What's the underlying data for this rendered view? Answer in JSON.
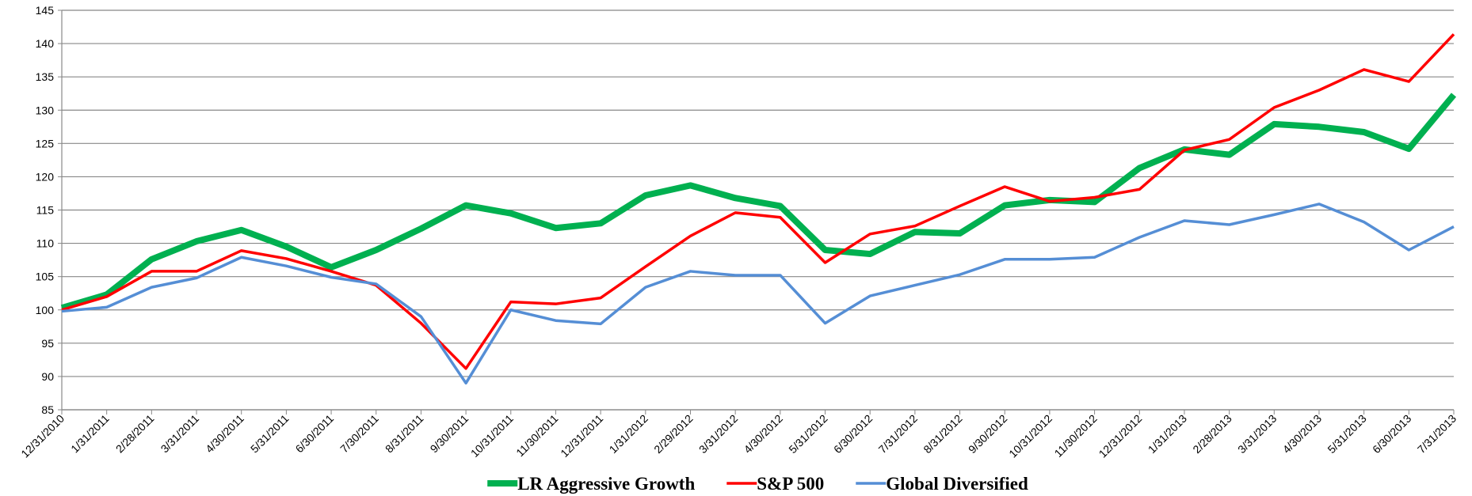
{
  "chart_data": {
    "type": "line",
    "categories": [
      "12/31/2010",
      "1/31/2011",
      "2/28/2011",
      "3/31/2011",
      "4/30/2011",
      "5/31/2011",
      "6/30/2011",
      "7/30/2011",
      "8/31/2011",
      "9/30/2011",
      "10/31/2011",
      "11/30/2011",
      "12/31/2011",
      "1/31/2012",
      "2/29/2012",
      "3/31/2012",
      "4/30/2012",
      "5/31/2012",
      "6/30/2012",
      "7/31/2012",
      "8/31/2012",
      "9/30/2012",
      "10/31/2012",
      "11/30/2012",
      "12/31/2012",
      "1/31/2013",
      "2/28/2013",
      "3/31/2013",
      "4/30/2013",
      "5/31/2013",
      "6/30/2013",
      "7/31/2013"
    ],
    "series": [
      {
        "name": "LR Aggressive Growth",
        "color": "#00b050",
        "values": [
          100.3,
          102.3,
          107.6,
          110.3,
          112.0,
          109.5,
          106.4,
          109.0,
          112.2,
          115.7,
          114.5,
          112.3,
          113.0,
          117.2,
          118.7,
          116.8,
          115.6,
          109.0,
          108.4,
          111.7,
          111.5,
          115.7,
          116.5,
          116.2,
          121.3,
          124.1,
          123.3,
          127.9,
          127.5,
          126.7,
          124.2,
          132.3
        ]
      },
      {
        "name": "S&P 500",
        "color": "#ff0000",
        "values": [
          100.0,
          102.0,
          105.8,
          105.8,
          108.9,
          107.7,
          105.8,
          103.7,
          98.0,
          91.2,
          101.2,
          100.9,
          101.8,
          106.5,
          111.1,
          114.6,
          113.9,
          107.1,
          111.4,
          112.6,
          115.6,
          118.5,
          116.3,
          116.9,
          118.1,
          124.0,
          125.6,
          130.4,
          133.0,
          136.1,
          134.3,
          141.4
        ]
      },
      {
        "name": "Global Diversified",
        "color": "#558ed5",
        "values": [
          99.8,
          100.4,
          103.4,
          104.8,
          107.9,
          106.6,
          104.9,
          103.9,
          99.0,
          89.0,
          100.0,
          98.4,
          97.9,
          103.4,
          105.8,
          105.2,
          105.2,
          98.0,
          102.1,
          103.7,
          105.3,
          107.6,
          107.6,
          107.9,
          110.9,
          113.4,
          112.8,
          114.3,
          115.9,
          113.2,
          109.0,
          112.5
        ]
      }
    ],
    "ylim": [
      85,
      145
    ],
    "yticks": [
      85,
      90,
      95,
      100,
      105,
      110,
      115,
      120,
      125,
      130,
      135,
      140,
      145
    ],
    "grid": true,
    "legend": "bottom"
  }
}
